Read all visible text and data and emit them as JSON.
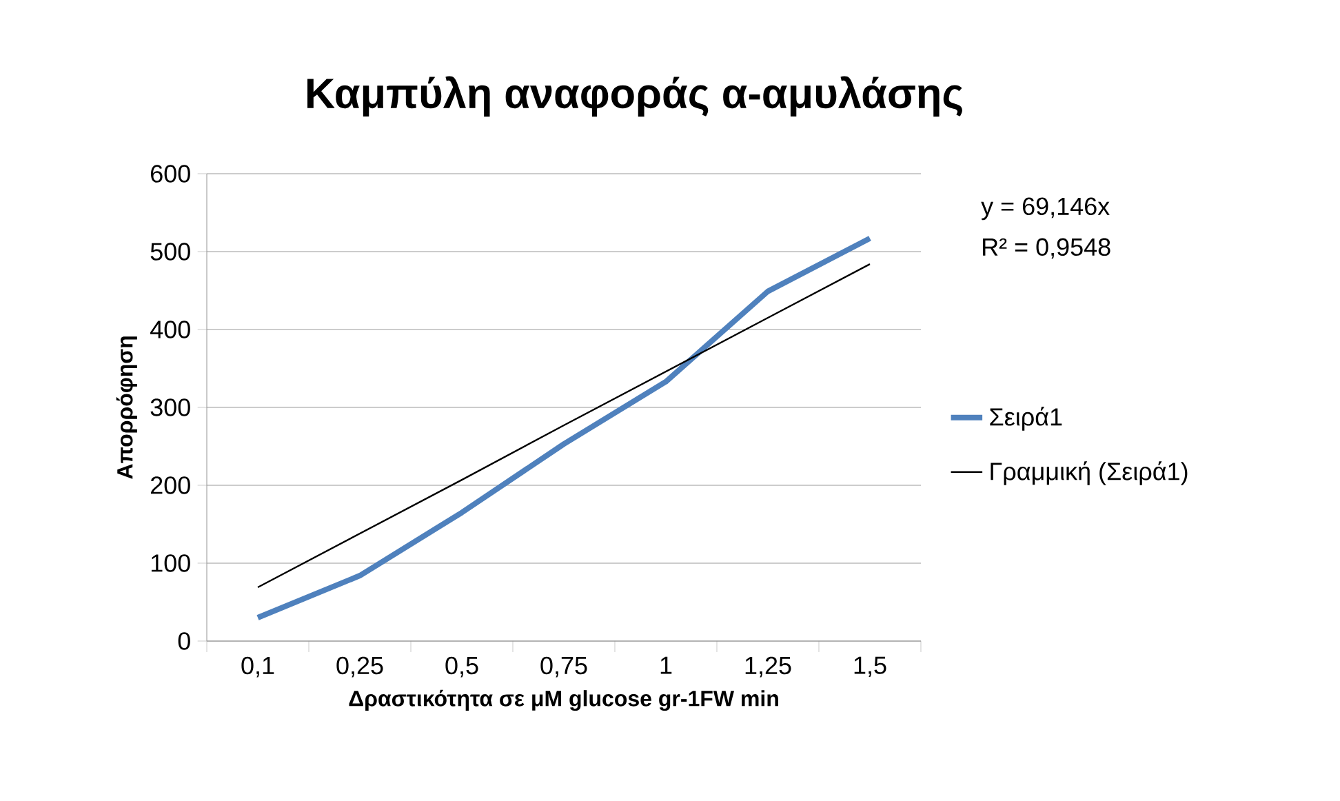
{
  "chart_data": {
    "type": "line",
    "title": "Καμπύλη αναφοράς α-αμυλάσης",
    "xlabel": "Δραστικότητα σε μM glucose gr-1FW min",
    "ylabel": "Απορρόφηση",
    "categories": [
      "0,1",
      "0,25",
      "0,5",
      "0,75",
      "1",
      "1,25",
      "1,5"
    ],
    "ylim": [
      0,
      600
    ],
    "yticks": [
      0,
      100,
      200,
      300,
      400,
      500,
      600
    ],
    "grid": "y",
    "legend": "right",
    "line_style": "solid",
    "marker": "none",
    "annotations": [
      "y = 69,146x",
      "R² = 0,9548"
    ],
    "series": [
      {
        "name": "Σειρά1",
        "color": "#4f81bd",
        "values": [
          30,
          84,
          165,
          253,
          333,
          449,
          517
        ]
      },
      {
        "name": "Γραμμική (Σειρά1)",
        "type": "line",
        "color": "#000000",
        "values": [
          69,
          138,
          207,
          277,
          346,
          415,
          484
        ]
      }
    ]
  }
}
